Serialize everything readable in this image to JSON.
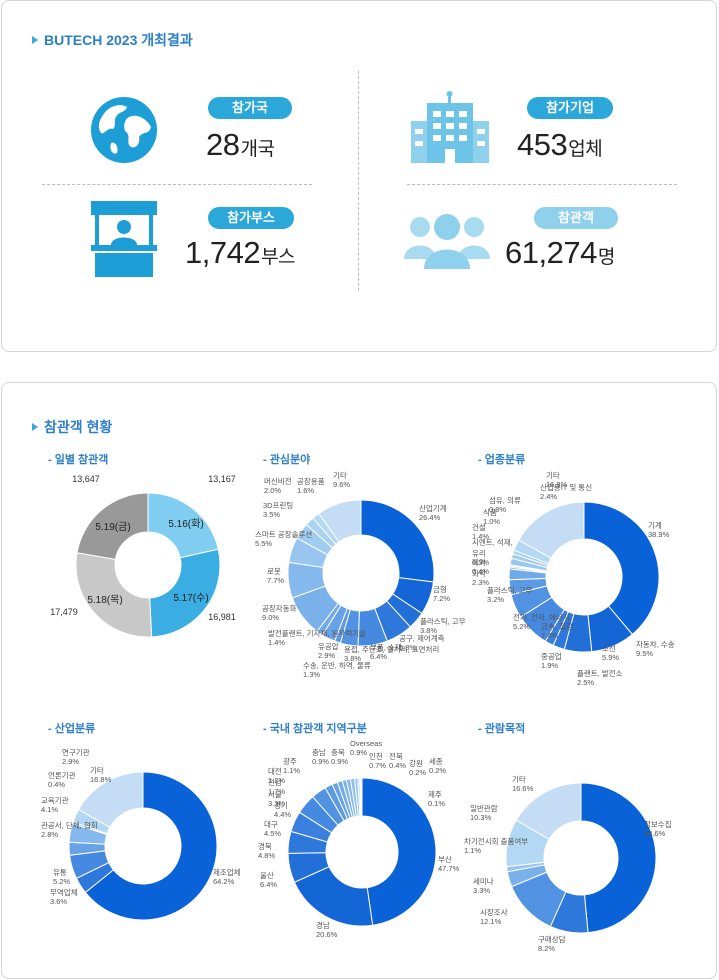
{
  "header": {
    "title": "BUTECH 2023 개최결과"
  },
  "stats": [
    {
      "label": "참가국",
      "value": "28",
      "unit": "개국",
      "icon": "globe-icon",
      "color": "#2ba8d9"
    },
    {
      "label": "참가기업",
      "value": "453",
      "unit": "업체",
      "icon": "building-icon",
      "color": "#2ba8d9"
    },
    {
      "label": "참가부스",
      "value": "1,742",
      "unit": "부스",
      "icon": "booth-icon",
      "color": "#2ba8d9"
    },
    {
      "label": "참관객",
      "value": "61,274",
      "unit": "명",
      "icon": "visitors-icon",
      "color": "#8fd0ec"
    }
  ],
  "section2": {
    "title": "참관객 현황"
  },
  "chart_data": [
    {
      "type": "pie",
      "title": "- 일별 참관객",
      "slices": [
        {
          "label": "5.16(화)",
          "value": 13167,
          "value_label": "13,167",
          "color": "#7fcdf0"
        },
        {
          "label": "5.17(수)",
          "value": 16981,
          "value_label": "16,981",
          "color": "#3aaee3"
        },
        {
          "label": "5.18(목)",
          "value": 17479,
          "value_label": "17,479",
          "color": "#c8c8c8"
        },
        {
          "label": "5.19(금)",
          "value": 13647,
          "value_label": "13,647",
          "color": "#999999"
        }
      ]
    },
    {
      "type": "pie",
      "title": "- 관심분야",
      "slices": [
        {
          "label": "산업기계",
          "value": 26.4,
          "value_label": "26.4%"
        },
        {
          "label": "금형",
          "value": 7.2,
          "value_label": "7.2%"
        },
        {
          "label": "플라스틱, 고무",
          "value": 3.8,
          "value_label": "3.8%"
        },
        {
          "label": "공구, 제어계측",
          "value": 5.8,
          "value_label": "5.8%"
        },
        {
          "label": "부품, 소재",
          "value": 6.4,
          "value_label": "6.4%"
        },
        {
          "label": "용접, 주단조, 열처리, 표면처리",
          "value": 3.8,
          "value_label": "3.8%"
        },
        {
          "label": "수송, 운반, 하역, 물류",
          "value": 1.3,
          "value_label": "1.3%"
        },
        {
          "label": "유공압",
          "value": 2.9,
          "value_label": "2.9%"
        },
        {
          "label": "발전플랜트, 기자재, 원자력기술",
          "value": 1.4,
          "value_label": "1.4%"
        },
        {
          "label": "공장자동화",
          "value": 9.0,
          "value_label": "9.0%"
        },
        {
          "label": "로봇",
          "value": 7.7,
          "value_label": "7.7%"
        },
        {
          "label": "스마트 공장솔루션",
          "value": 5.5,
          "value_label": "5.5%"
        },
        {
          "label": "3D프린팅",
          "value": 3.5,
          "value_label": "3.5%"
        },
        {
          "label": "머신비전",
          "value": 2.0,
          "value_label": "2.0%"
        },
        {
          "label": "공장용품",
          "value": 1.6,
          "value_label": "1.6%"
        },
        {
          "label": "기타",
          "value": 9.6,
          "value_label": "9.6%"
        }
      ]
    },
    {
      "type": "pie",
      "title": "- 업종분류",
      "slices": [
        {
          "label": "기계",
          "value": 38.9,
          "value_label": "38.9%"
        },
        {
          "label": "자동차, 수송",
          "value": 9.5,
          "value_label": "9.5%"
        },
        {
          "label": "조선",
          "value": 5.9,
          "value_label": "5.9%"
        },
        {
          "label": "플랜트, 발전소",
          "value": 2.5,
          "value_label": "2.5%"
        },
        {
          "label": "중공업",
          "value": 1.9,
          "value_label": "1.9%"
        },
        {
          "label": "금속, 철강",
          "value": 7.4,
          "value_label": "7.4%"
        },
        {
          "label": "전기, 전자, 에너지",
          "value": 5.2,
          "value_label": "5.2%"
        },
        {
          "label": "플라스틱, 고무",
          "value": 3.2,
          "value_label": "3.2%"
        },
        {
          "label": "화학",
          "value": 2.3,
          "value_label": "2.3%"
        },
        {
          "label": "제약",
          "value": 0.4,
          "value_label": "0.4%"
        },
        {
          "label": "유리",
          "value": 0.3,
          "value_label": "0.3%"
        },
        {
          "label": "시멘트, 석재,",
          "value": 0.2,
          "value_label": ""
        },
        {
          "label": "건설",
          "value": 1.4,
          "value_label": "1.4%"
        },
        {
          "label": "식품",
          "value": 1.0,
          "value_label": "1.0%"
        },
        {
          "label": "섬유, 의류",
          "value": 0.8,
          "value_label": "0.8%"
        },
        {
          "label": "산업용IT 및 통신",
          "value": 2.4,
          "value_label": "2.4%"
        },
        {
          "label": "기타",
          "value": 16.8,
          "value_label": "16.8%"
        }
      ]
    },
    {
      "type": "pie",
      "title": "- 산업분류",
      "slices": [
        {
          "label": "제조업체",
          "value": 64.2,
          "value_label": "64.2%"
        },
        {
          "label": "무역업체",
          "value": 3.6,
          "value_label": "3.6%"
        },
        {
          "label": "유통",
          "value": 5.2,
          "value_label": "5.2%"
        },
        {
          "label": "관공서, 단체, 협회",
          "value": 2.8,
          "value_label": "2.8%"
        },
        {
          "label": "교육기관",
          "value": 4.1,
          "value_label": "4.1%"
        },
        {
          "label": "언론기관",
          "value": 0.4,
          "value_label": "0.4%"
        },
        {
          "label": "연구기관",
          "value": 2.9,
          "value_label": "2.9%"
        },
        {
          "label": "기타",
          "value": 16.8,
          "value_label": "16.8%"
        }
      ]
    },
    {
      "type": "pie",
      "title": "- 국내 참관객 지역구분",
      "slices": [
        {
          "label": "부산",
          "value": 47.7,
          "value_label": "47.7%"
        },
        {
          "label": "경남",
          "value": 20.6,
          "value_label": "20.6%"
        },
        {
          "label": "울산",
          "value": 6.4,
          "value_label": "6.4%"
        },
        {
          "label": "경북",
          "value": 4.8,
          "value_label": "4.8%"
        },
        {
          "label": "대구",
          "value": 4.5,
          "value_label": "4.5%"
        },
        {
          "label": "경기",
          "value": 4.4,
          "value_label": "4.4%"
        },
        {
          "label": "서울",
          "value": 3.3,
          "value_label": "3.3%"
        },
        {
          "label": "전남",
          "value": 1.7,
          "value_label": "1.7%"
        },
        {
          "label": "대전",
          "value": 1.2,
          "value_label": "1.2%"
        },
        {
          "label": "광주",
          "value": 1.1,
          "value_label": "1.1%"
        },
        {
          "label": "충남",
          "value": 0.9,
          "value_label": "0.9%"
        },
        {
          "label": "충북",
          "value": 0.9,
          "value_label": "0.9%"
        },
        {
          "label": "Overseas",
          "value": 0.9,
          "value_label": "0.9%"
        },
        {
          "label": "인천",
          "value": 0.7,
          "value_label": "0.7%"
        },
        {
          "label": "전북",
          "value": 0.4,
          "value_label": "0.4%"
        },
        {
          "label": "강원",
          "value": 0.2,
          "value_label": "0.2%"
        },
        {
          "label": "세종",
          "value": 0.2,
          "value_label": "0.2%"
        },
        {
          "label": "제주",
          "value": 0.1,
          "value_label": "0.1%"
        }
      ]
    },
    {
      "type": "pie",
      "title": "- 관람목적",
      "slices": [
        {
          "label": "정보수집",
          "value": 48.6,
          "value_label": "48.6%"
        },
        {
          "label": "구매상담",
          "value": 8.2,
          "value_label": "8.2%"
        },
        {
          "label": "시장조사",
          "value": 12.1,
          "value_label": "12.1%"
        },
        {
          "label": "세미나",
          "value": 3.3,
          "value_label": "3.3%"
        },
        {
          "label": "차기전시회 출품여부",
          "value": 1.1,
          "value_label": "1.1%"
        },
        {
          "label": "일반관람",
          "value": 10.3,
          "value_label": "10.3%"
        },
        {
          "label": "기타",
          "value": 16.6,
          "value_label": "16.6%"
        }
      ]
    }
  ]
}
